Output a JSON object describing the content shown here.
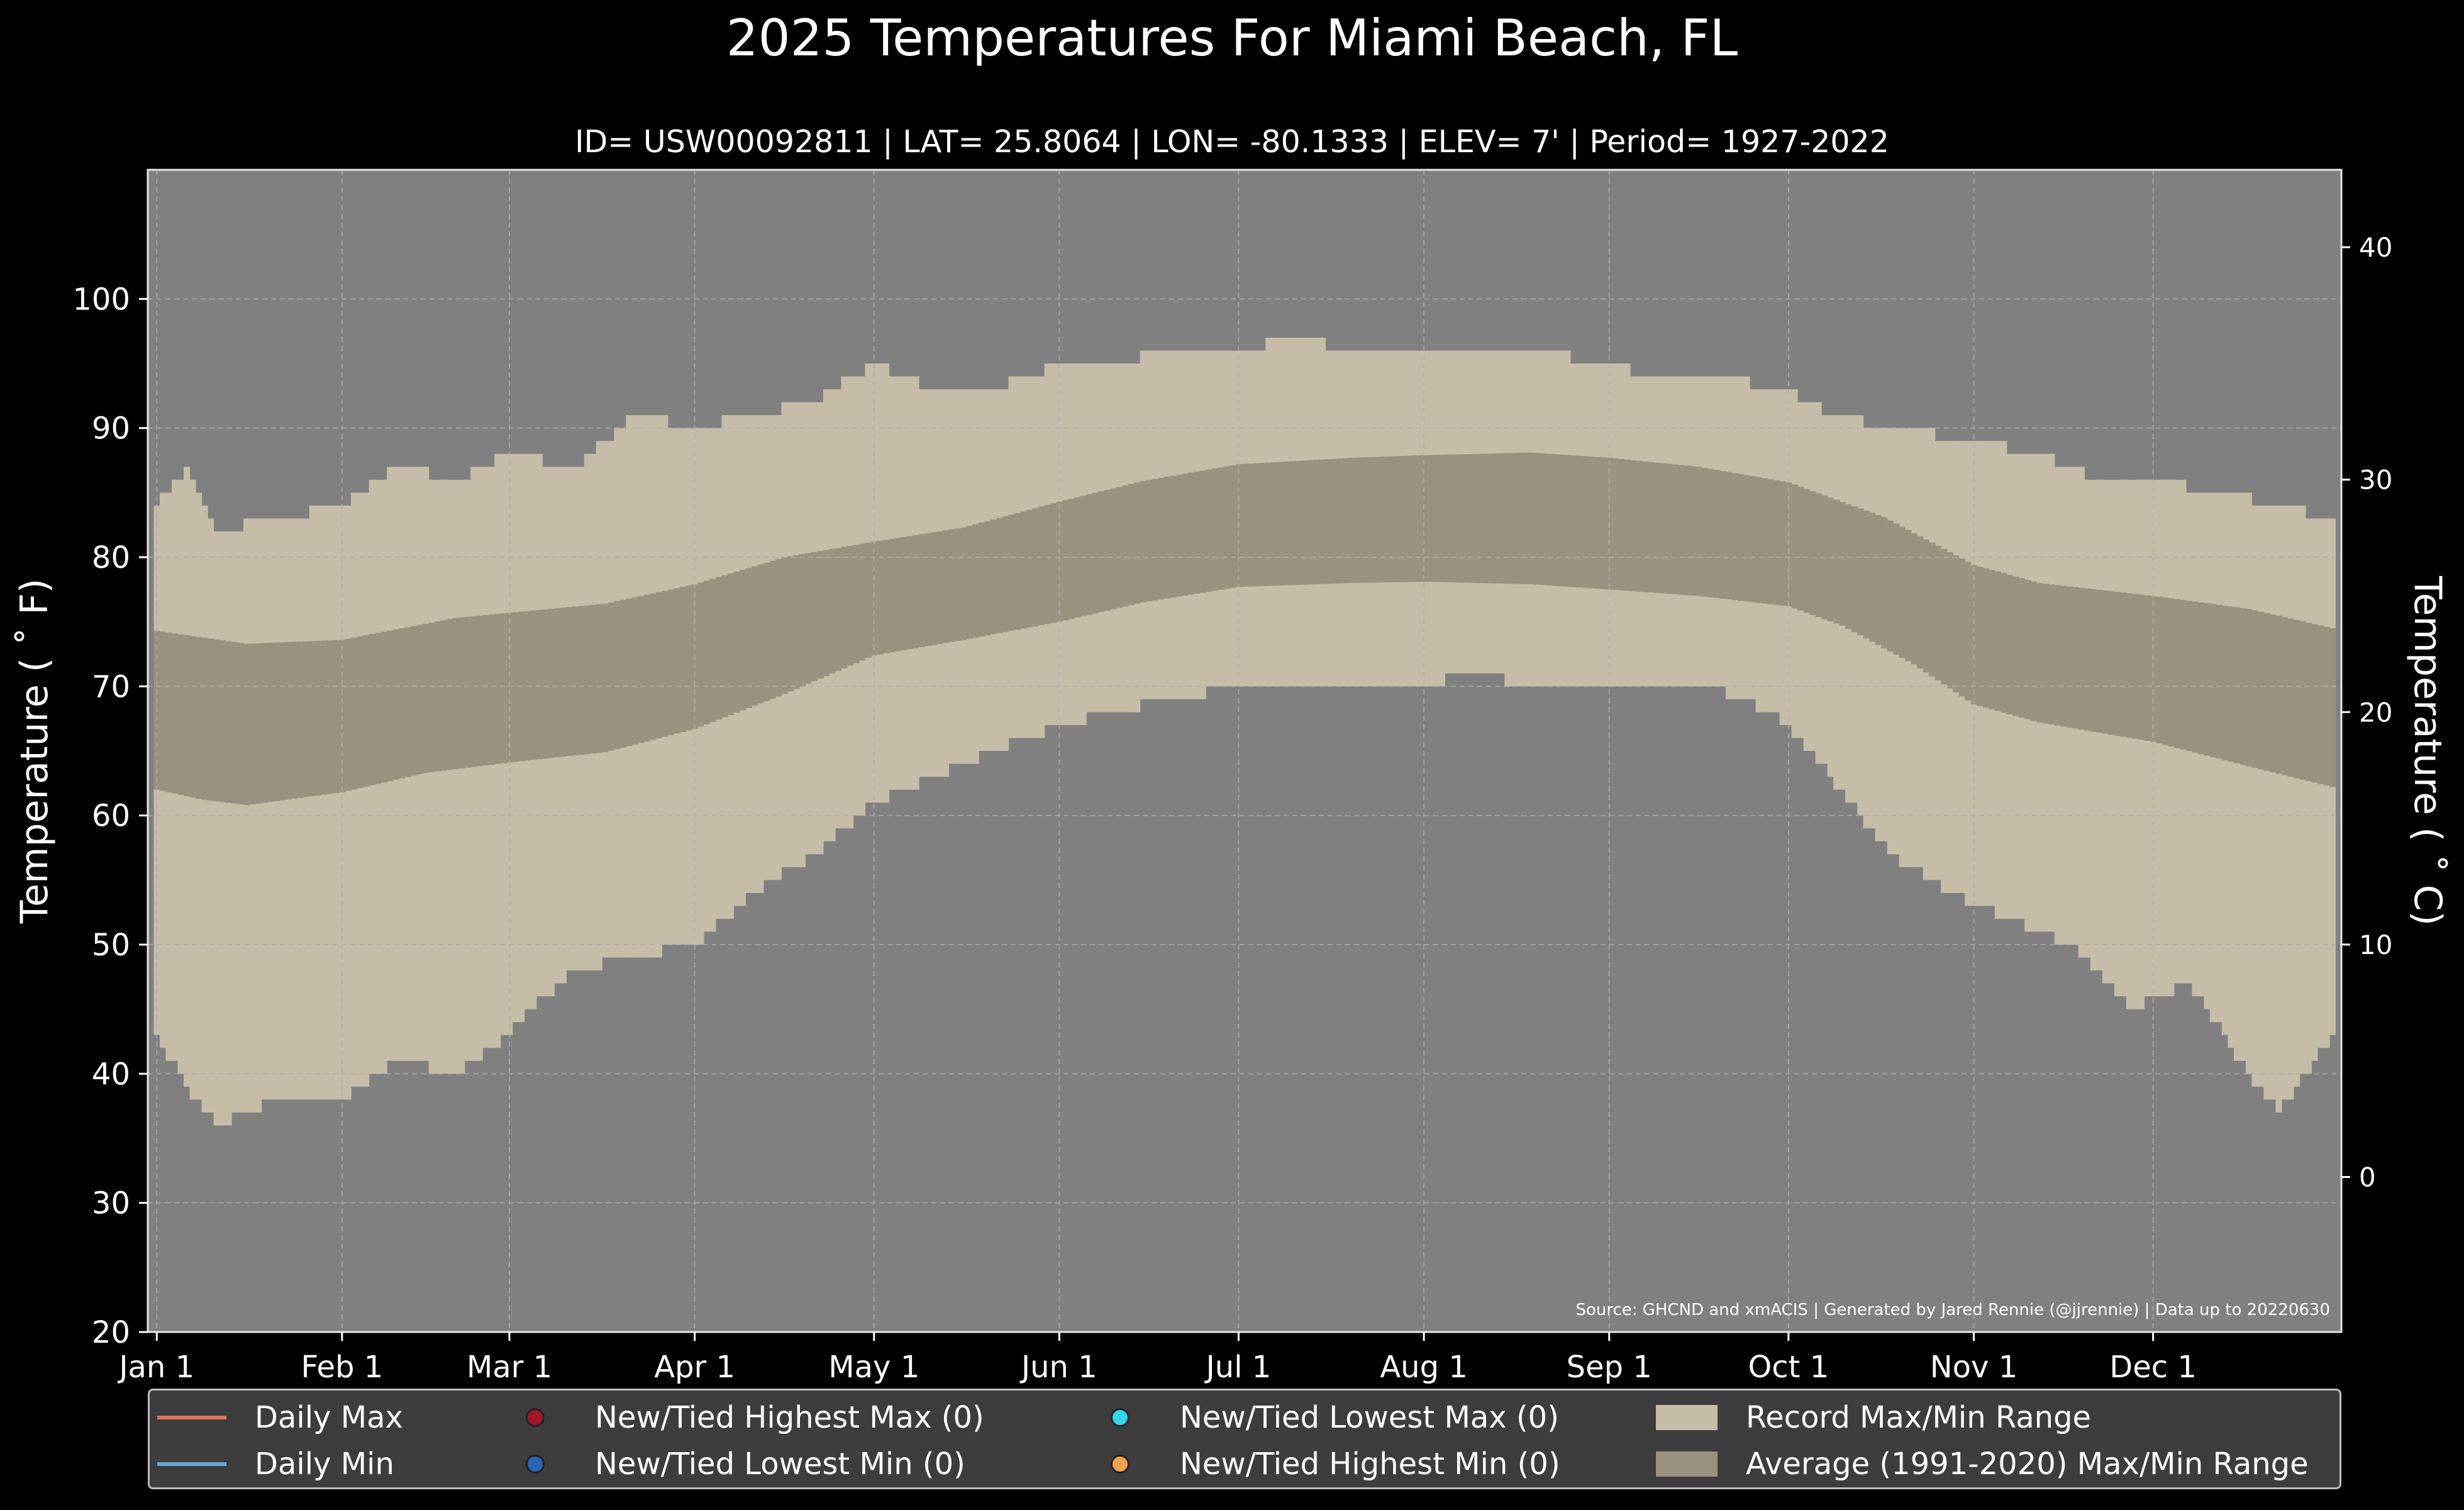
{
  "chart_data": {
    "type": "area",
    "title": "2025 Temperatures For Miami Beach, FL",
    "subtitle": "ID= USW00092811 | LAT= 25.8064 | LON= -80.1333 | ELEV= 7' | Period= 1927-2022",
    "ylabel": "Temperature ($^\\circ$F)",
    "ylabel_display": "Temperature ( ˚ F)",
    "y2label_display": "Temperature ( ˚ C)",
    "ylim": [
      20,
      110
    ],
    "y2lim_c": [
      -6.67,
      43.33
    ],
    "yticks": [
      20,
      30,
      40,
      50,
      60,
      70,
      80,
      90,
      100
    ],
    "y2ticks": [
      0,
      10,
      20,
      30,
      40
    ],
    "xlim_day": [
      -1.5,
      365.5
    ],
    "month_ticks": [
      {
        "label": "Jan 1",
        "day": 0
      },
      {
        "label": "Feb 1",
        "day": 31
      },
      {
        "label": "Mar 1",
        "day": 59
      },
      {
        "label": "Apr 1",
        "day": 90
      },
      {
        "label": "May 1",
        "day": 120
      },
      {
        "label": "Jun 1",
        "day": 151
      },
      {
        "label": "Jul 1",
        "day": 181
      },
      {
        "label": "Aug 1",
        "day": 212
      },
      {
        "label": "Sep 1",
        "day": 243
      },
      {
        "label": "Oct 1",
        "day": 273
      },
      {
        "label": "Nov 1",
        "day": 304
      },
      {
        "label": "Dec 1",
        "day": 334
      }
    ],
    "source_note": "Source: GHCND and xmACIS | Generated by Jared Rennie (@jjrennie) | Data up to 20220630",
    "record_max_anchors": [
      [
        0,
        84
      ],
      [
        5,
        87
      ],
      [
        10,
        82
      ],
      [
        20,
        83
      ],
      [
        31,
        84
      ],
      [
        40,
        87
      ],
      [
        50,
        86
      ],
      [
        59,
        88
      ],
      [
        70,
        87
      ],
      [
        80,
        91
      ],
      [
        90,
        90
      ],
      [
        100,
        91
      ],
      [
        110,
        92
      ],
      [
        120,
        95
      ],
      [
        130,
        93
      ],
      [
        140,
        93
      ],
      [
        151,
        95
      ],
      [
        160,
        95
      ],
      [
        170,
        96
      ],
      [
        181,
        96
      ],
      [
        190,
        97
      ],
      [
        200,
        96
      ],
      [
        212,
        96
      ],
      [
        220,
        96
      ],
      [
        230,
        96
      ],
      [
        243,
        95
      ],
      [
        250,
        94
      ],
      [
        260,
        94
      ],
      [
        273,
        93
      ],
      [
        280,
        91
      ],
      [
        290,
        90
      ],
      [
        304,
        89
      ],
      [
        315,
        88
      ],
      [
        325,
        86
      ],
      [
        334,
        86
      ],
      [
        345,
        85
      ],
      [
        355,
        84
      ],
      [
        364,
        83
      ]
    ],
    "record_min_anchors": [
      [
        0,
        43
      ],
      [
        5,
        39
      ],
      [
        10,
        36
      ],
      [
        20,
        38
      ],
      [
        31,
        38
      ],
      [
        40,
        41
      ],
      [
        50,
        40
      ],
      [
        59,
        43
      ],
      [
        65,
        46
      ],
      [
        70,
        48
      ],
      [
        80,
        49
      ],
      [
        90,
        50
      ],
      [
        100,
        54
      ],
      [
        110,
        57
      ],
      [
        120,
        61
      ],
      [
        130,
        63
      ],
      [
        140,
        65
      ],
      [
        151,
        67
      ],
      [
        160,
        68
      ],
      [
        170,
        69
      ],
      [
        181,
        70
      ],
      [
        190,
        70
      ],
      [
        200,
        70
      ],
      [
        212,
        70
      ],
      [
        220,
        71
      ],
      [
        230,
        70
      ],
      [
        243,
        70
      ],
      [
        250,
        70
      ],
      [
        260,
        70
      ],
      [
        270,
        68
      ],
      [
        280,
        63
      ],
      [
        290,
        57
      ],
      [
        300,
        54
      ],
      [
        310,
        52
      ],
      [
        320,
        50
      ],
      [
        330,
        45
      ],
      [
        340,
        47
      ],
      [
        350,
        40
      ],
      [
        355,
        37
      ],
      [
        364,
        43
      ]
    ],
    "avg_max_anchors": [
      [
        0,
        74.3
      ],
      [
        15,
        73.3
      ],
      [
        31,
        73.6
      ],
      [
        50,
        75.3
      ],
      [
        59,
        75.7
      ],
      [
        75,
        76.4
      ],
      [
        90,
        77.9
      ],
      [
        105,
        80.0
      ],
      [
        120,
        81.2
      ],
      [
        135,
        82.3
      ],
      [
        151,
        84.3
      ],
      [
        165,
        85.9
      ],
      [
        181,
        87.2
      ],
      [
        200,
        87.7
      ],
      [
        212,
        87.9
      ],
      [
        230,
        88.1
      ],
      [
        243,
        87.7
      ],
      [
        258,
        87.0
      ],
      [
        273,
        85.8
      ],
      [
        289,
        83.1
      ],
      [
        304,
        79.4
      ],
      [
        315,
        78.0
      ],
      [
        334,
        77.0
      ],
      [
        350,
        76.0
      ],
      [
        364,
        74.5
      ]
    ],
    "avg_min_anchors": [
      [
        0,
        62.0
      ],
      [
        8,
        61.2
      ],
      [
        15,
        60.8
      ],
      [
        31,
        61.8
      ],
      [
        45,
        63.3
      ],
      [
        59,
        64.1
      ],
      [
        75,
        64.9
      ],
      [
        90,
        66.7
      ],
      [
        105,
        69.4
      ],
      [
        120,
        72.4
      ],
      [
        135,
        73.6
      ],
      [
        151,
        75.0
      ],
      [
        165,
        76.5
      ],
      [
        181,
        77.7
      ],
      [
        200,
        78.0
      ],
      [
        212,
        78.1
      ],
      [
        230,
        77.9
      ],
      [
        243,
        77.5
      ],
      [
        258,
        77.0
      ],
      [
        273,
        76.2
      ],
      [
        282,
        74.7
      ],
      [
        294,
        71.7
      ],
      [
        304,
        68.6
      ],
      [
        315,
        67.2
      ],
      [
        334,
        65.7
      ],
      [
        350,
        63.8
      ],
      [
        364,
        62.2
      ]
    ],
    "legend": [
      {
        "label": "Daily Max",
        "kind": "line",
        "color": "#e4715d"
      },
      {
        "label": "Daily Min",
        "kind": "line",
        "color": "#64a6dc"
      },
      {
        "label": "New/Tied Highest Max (0)",
        "kind": "dot",
        "color": "#a31527"
      },
      {
        "label": "New/Tied Lowest Min (0)",
        "kind": "dot",
        "color": "#2668b6"
      },
      {
        "label": "New/Tied Lowest Max (0)",
        "kind": "dot",
        "color": "#2dd8e8"
      },
      {
        "label": "New/Tied Highest Min (0)",
        "kind": "dot",
        "color": "#f2a24a"
      },
      {
        "label": "Record Max/Min Range",
        "kind": "patch",
        "color": "#c6bda8"
      },
      {
        "label": "Average (1991-2020) Max/Min Range",
        "kind": "patch",
        "color": "#9b9180"
      }
    ],
    "colors": {
      "plot_bg": "#808080",
      "record": "#c6bda8",
      "average": "#9b9180",
      "figure_bg": "#000000"
    },
    "grid": true,
    "legend_position": "bottom"
  }
}
